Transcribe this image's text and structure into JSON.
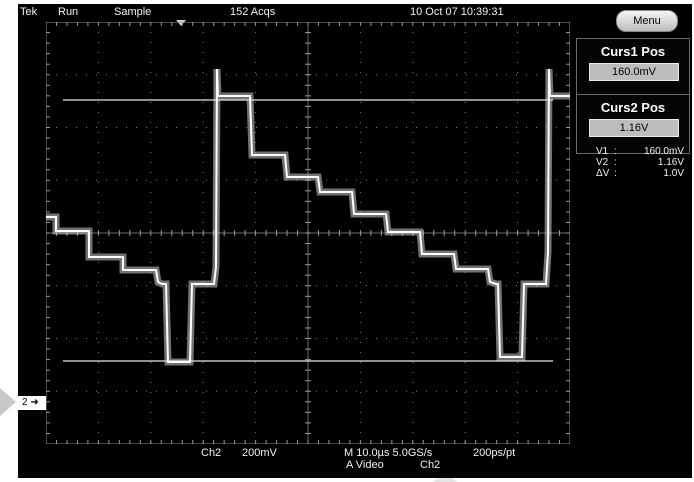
{
  "header": {
    "brand": "Tek",
    "run_state": "Run",
    "acq_mode": "Sample",
    "acquisitions": "152 Acqs",
    "timestamp": "10 Oct 07 10:39:31"
  },
  "menu_label": "Menu",
  "cursor1": {
    "label": "Curs1 Pos",
    "value": "160.0mV"
  },
  "cursor2": {
    "label": "Curs2 Pos",
    "value": "1.16V"
  },
  "readout": [
    {
      "key": "V1",
      "value": "160.0mV"
    },
    {
      "key": "V2",
      "value": "1.16V"
    },
    {
      "key": "ΔV",
      "value": "1.0V"
    }
  ],
  "channel_marker": "2",
  "bottom": {
    "channel": "Ch2",
    "scale": "200mV",
    "timebase": "M 10.0µs 5.0GS/s",
    "resolution": "200ps/pt",
    "trigger_src": "A  Video",
    "trigger_ch": "Ch2"
  },
  "colors": {
    "background": "#000000",
    "trace": "#ffffff",
    "graticule": "#8a8a8a",
    "panel_value_bg": "#bdbdbd"
  },
  "trace_levels": {
    "cursor1_level": 0.16,
    "cursor2_level": 1.16
  }
}
